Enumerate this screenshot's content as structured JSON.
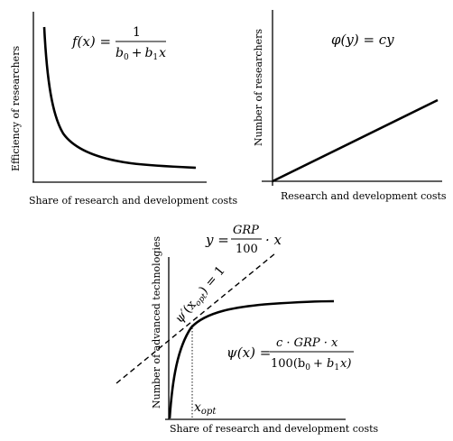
{
  "panel_left": {
    "ylabel": "Efficiency of researchers",
    "xlabel": "Share of research and development costs",
    "formula": {
      "lhs": "f(x) =",
      "numerator": "1",
      "denominator_b0": "b",
      "sub0": "0",
      "plus": "+",
      "denominator_b1": "b",
      "sub1": "1",
      "var": "x"
    }
  },
  "panel_right": {
    "ylabel": "Number of researchers",
    "xlabel": "Research and development costs",
    "formula": "φ(y) = cy"
  },
  "panel_bottom": {
    "ylabel": "Number of advanced technologies",
    "xlabel": "Share of research and development costs",
    "formula_line": {
      "lhs": "y =",
      "numerator": "GRP",
      "denominator": "100",
      "rhs": "· x"
    },
    "tangent_label": {
      "psi": "ψ′",
      "open": "(x",
      "sub": "opt",
      "close": ") = 1"
    },
    "xopt_label": {
      "x": "x",
      "sub": "opt"
    },
    "formula_psi": {
      "lhs": "ψ(x) =",
      "numerator": "c · GRP · x",
      "denominator": "100(b",
      "sub0": "0",
      "plus": "+ b",
      "sub1": "1",
      "tail": "x)"
    }
  }
}
